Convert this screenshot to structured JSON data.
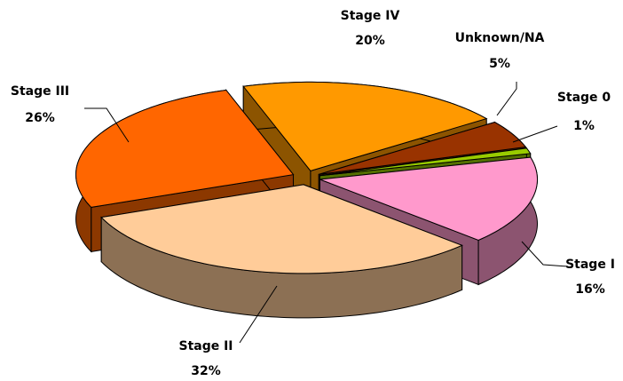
{
  "chart_data": {
    "type": "pie",
    "categories": [
      "Stage 0",
      "Stage I",
      "Stage II",
      "Stage III",
      "Stage IV",
      "Unknown/NA"
    ],
    "values": [
      1,
      16,
      32,
      26,
      20,
      5
    ],
    "value_labels": [
      "1%",
      "16%",
      "32%",
      "26%",
      "20%",
      "5%"
    ],
    "colors": [
      "#99cc00",
      "#ff99cc",
      "#ffcc99",
      "#ff6600",
      "#ff9900",
      "#993300"
    ]
  }
}
